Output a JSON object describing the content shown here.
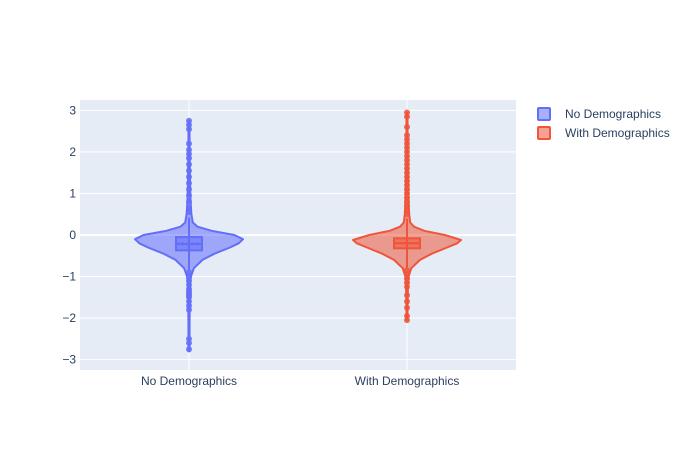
{
  "chart_data": {
    "type": "violin",
    "title": "",
    "xlabel": "",
    "ylabel": "",
    "categories": [
      "No Demographics",
      "With Demographics"
    ],
    "ylim": [
      -3.25,
      3.25
    ],
    "yticks": [
      3,
      2,
      1,
      0,
      -1,
      -2,
      -3
    ],
    "ytick_labels": [
      "3",
      "2",
      "1",
      "0",
      "−1",
      "−2",
      "−3"
    ],
    "grid": true,
    "legend_position": "top-right",
    "colors": {
      "plot_bg": "#E5ECF6",
      "grid": "#ffffff",
      "text": "#2a3f5f"
    },
    "series": [
      {
        "name": "No Demographics",
        "color": "#636EFA",
        "fill": "rgba(99,110,250,0.55)",
        "range": [
          -2.8,
          2.75
        ],
        "q1": -0.37,
        "median": -0.22,
        "q3": -0.05,
        "mean": -0.2,
        "whisker_low": -0.85,
        "whisker_high": 0.42,
        "density": [
          [
            -2.8,
            0.01
          ],
          [
            -2.0,
            0.012
          ],
          [
            -1.5,
            0.015
          ],
          [
            -1.2,
            0.02
          ],
          [
            -1.0,
            0.035
          ],
          [
            -0.8,
            0.09
          ],
          [
            -0.6,
            0.25
          ],
          [
            -0.45,
            0.47
          ],
          [
            -0.3,
            0.76
          ],
          [
            -0.2,
            0.92
          ],
          [
            -0.1,
            1.0
          ],
          [
            0.0,
            0.84
          ],
          [
            0.1,
            0.42
          ],
          [
            0.2,
            0.16
          ],
          [
            0.3,
            0.07
          ],
          [
            0.5,
            0.045
          ],
          [
            0.8,
            0.03
          ],
          [
            1.2,
            0.02
          ],
          [
            2.0,
            0.012
          ],
          [
            2.75,
            0.01
          ]
        ],
        "outliers": [
          2.75,
          2.65,
          2.55,
          2.2,
          2.05,
          1.95,
          1.85,
          1.7,
          1.55,
          1.4,
          1.25,
          1.1,
          0.95,
          0.8,
          0.65,
          0.55,
          -0.9,
          -1.0,
          -1.1,
          -1.2,
          -1.3,
          -1.35,
          -1.4,
          -1.45,
          -1.5,
          -1.6,
          -1.7,
          -1.8,
          -2.5,
          -2.6,
          -2.75
        ]
      },
      {
        "name": "With Demographics",
        "color": "#EF553B",
        "fill": "rgba(239,85,59,0.55)",
        "range": [
          -2.05,
          2.95
        ],
        "q1": -0.32,
        "median": -0.2,
        "q3": -0.08,
        "mean": -0.19,
        "whisker_low": -0.8,
        "whisker_high": 0.4,
        "density": [
          [
            -2.05,
            0.01
          ],
          [
            -1.6,
            0.012
          ],
          [
            -1.2,
            0.018
          ],
          [
            -1.0,
            0.03
          ],
          [
            -0.8,
            0.08
          ],
          [
            -0.6,
            0.24
          ],
          [
            -0.45,
            0.46
          ],
          [
            -0.3,
            0.74
          ],
          [
            -0.2,
            0.93
          ],
          [
            -0.12,
            1.0
          ],
          [
            0.0,
            0.7
          ],
          [
            0.1,
            0.32
          ],
          [
            0.2,
            0.13
          ],
          [
            0.3,
            0.06
          ],
          [
            0.5,
            0.04
          ],
          [
            0.8,
            0.03
          ],
          [
            1.2,
            0.02
          ],
          [
            2.0,
            0.012
          ],
          [
            2.95,
            0.01
          ]
        ],
        "outliers": [
          2.95,
          2.85,
          2.6,
          2.4,
          2.3,
          2.2,
          2.1,
          2.0,
          1.9,
          1.8,
          1.7,
          1.6,
          1.5,
          1.4,
          1.3,
          1.2,
          1.1,
          1.0,
          0.9,
          0.8,
          0.7,
          0.6,
          0.5,
          -0.85,
          -0.95,
          -1.05,
          -1.15,
          -1.25,
          -1.45,
          -1.6,
          -1.75,
          -1.95,
          -2.05
        ]
      }
    ]
  }
}
